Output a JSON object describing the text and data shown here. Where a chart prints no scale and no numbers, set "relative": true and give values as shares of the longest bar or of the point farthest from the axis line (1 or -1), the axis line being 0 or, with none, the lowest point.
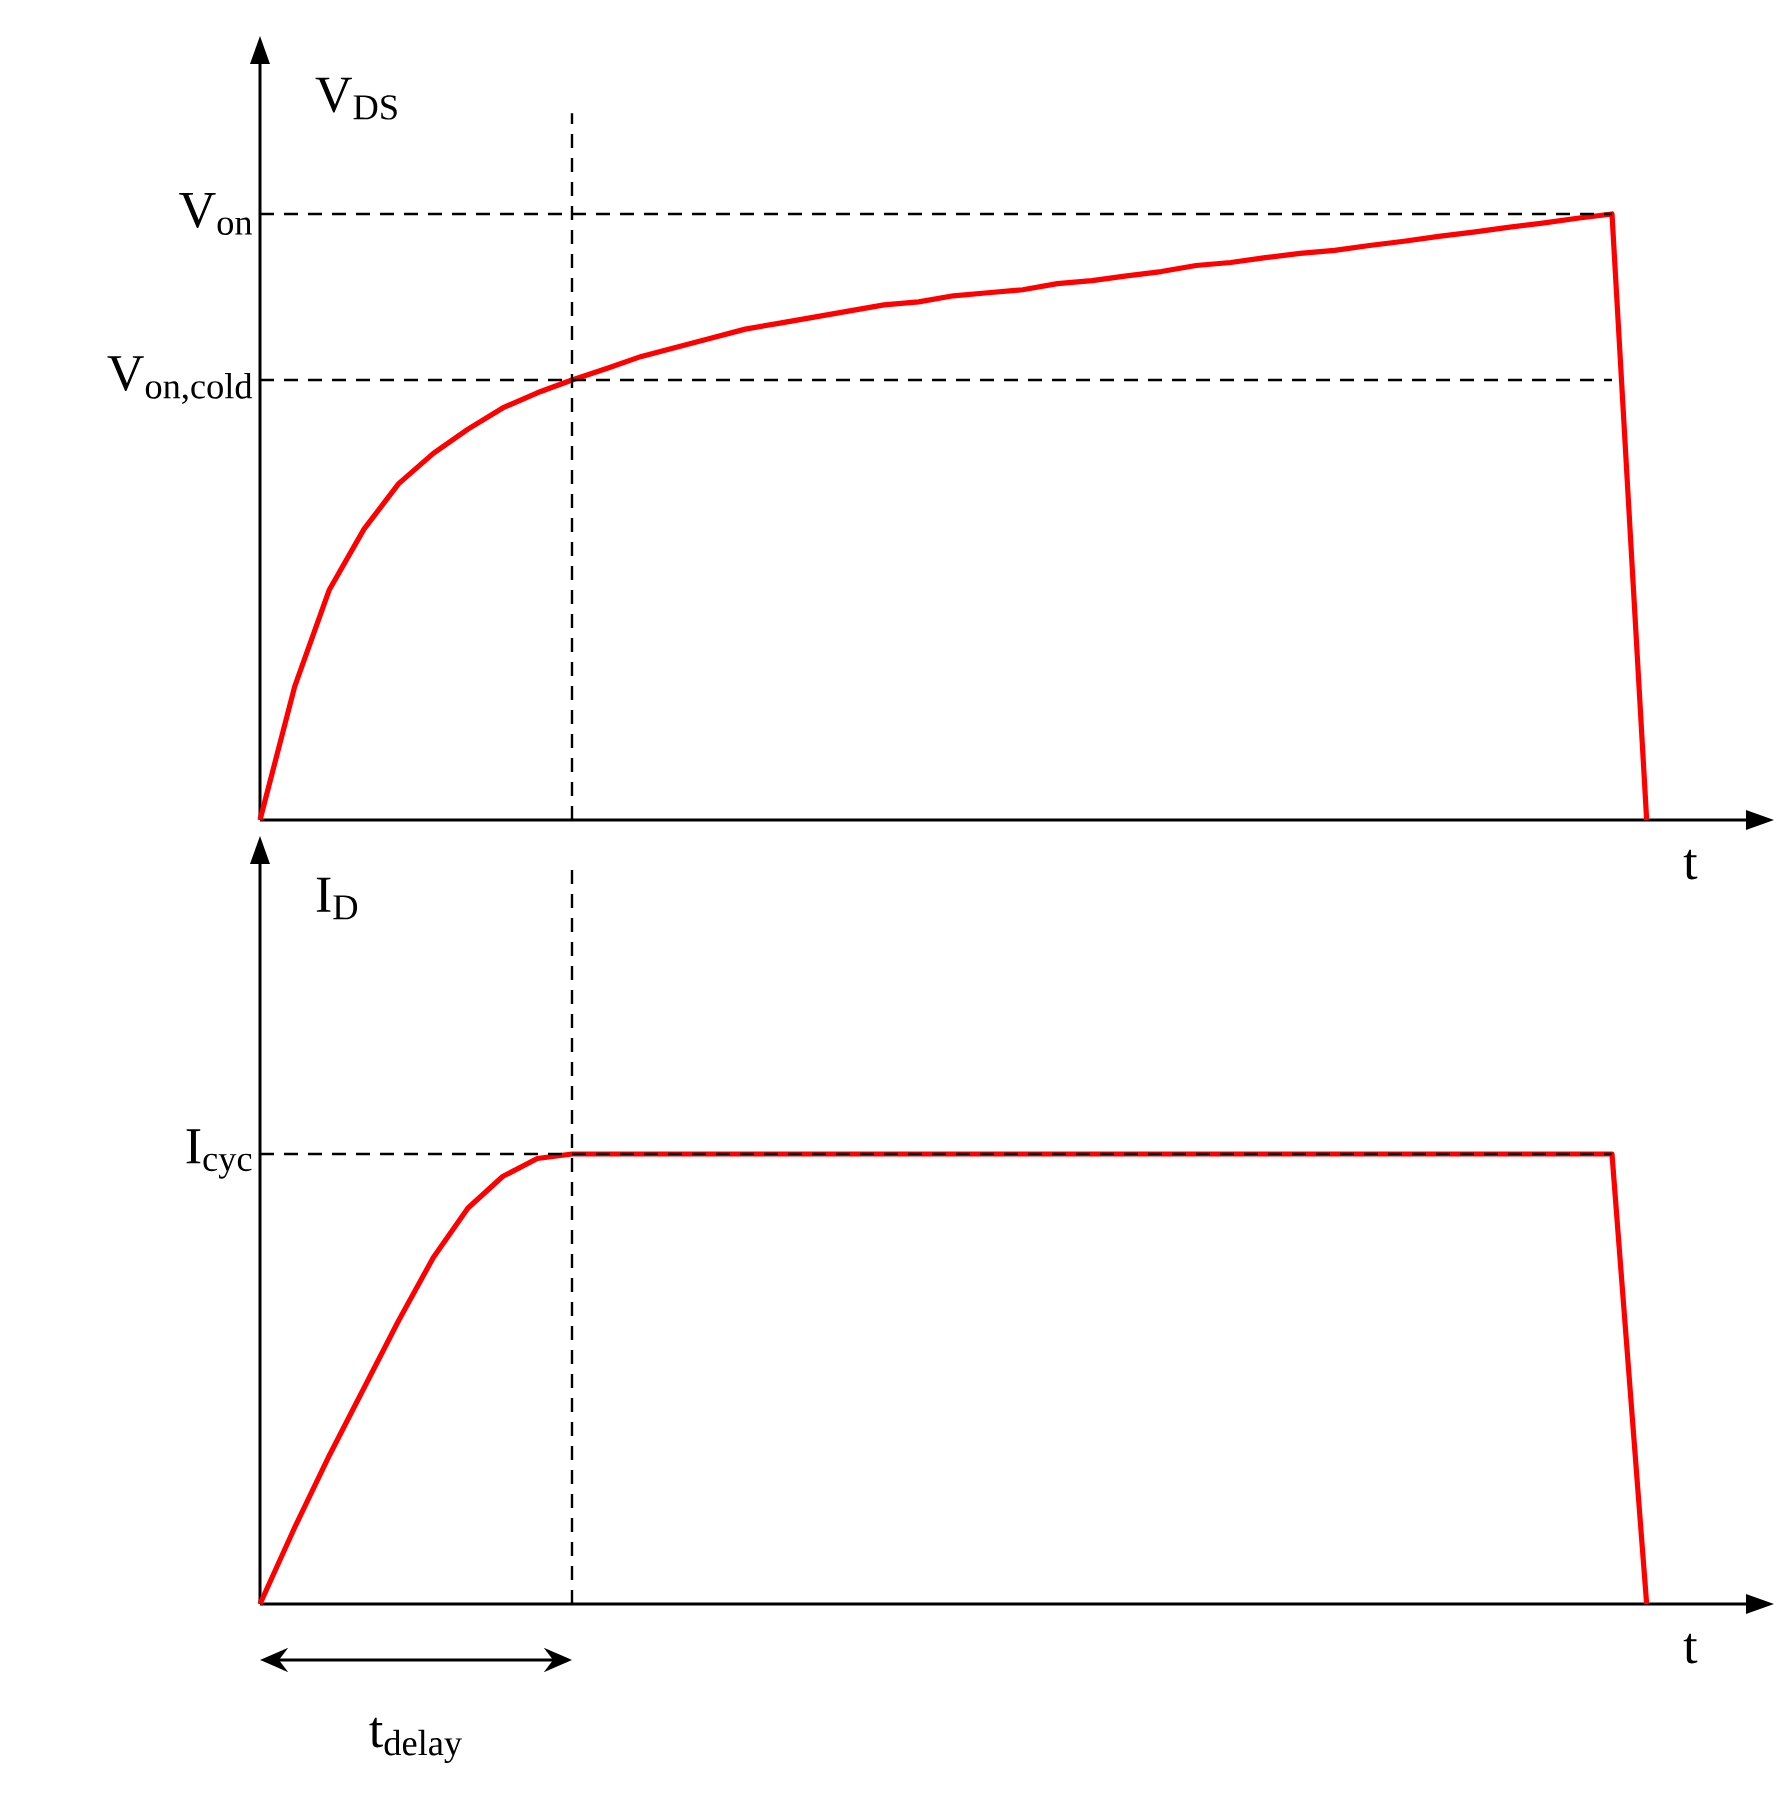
{
  "chart_data": [
    {
      "type": "line",
      "ylabel": "V$_{DS}$",
      "xlabel": "t",
      "relative": true,
      "marker": "none",
      "categories": [
        null,
        null,
        null,
        null,
        null,
        null,
        null,
        null,
        null,
        null,
        null,
        null,
        null,
        null,
        null,
        null,
        null,
        null,
        null,
        null,
        null,
        null,
        null,
        null,
        null,
        null,
        null,
        null,
        null,
        null,
        null,
        null,
        null,
        null,
        null,
        null,
        null,
        null,
        null,
        null,
        null
      ],
      "series": [
        {
          "color": "#ff0000",
          "values": [
            0,
            0.22,
            0.38,
            0.48,
            0.555,
            0.605,
            0.645,
            0.68,
            0.705,
            0.726,
            0.745,
            0.765,
            0.78,
            0.795,
            0.81,
            0.82,
            0.83,
            0.84,
            0.85,
            0.855,
            0.865,
            0.87,
            0.875,
            0.885,
            0.89,
            0.898,
            0.905,
            0.915,
            0.92,
            0.928,
            0.935,
            0.94,
            0.948,
            0.955,
            0.963,
            0.97,
            0.978,
            0.985,
            0.993,
            1,
            0
          ]
        }
      ],
      "ref_lines": [
        {
          "axis": "y",
          "value": 1,
          "label": "V$_{on}$",
          "line_style": "dashed",
          "color": "#000000"
        },
        {
          "axis": "y",
          "value": 0.726,
          "label": "V$_{on,cold}$",
          "line_style": "dashed",
          "color": "#000000"
        }
      ]
    },
    {
      "type": "line",
      "ylabel": "I$_{D}$",
      "xlabel": "t",
      "relative": true,
      "marker": "none",
      "categories": [
        null,
        null,
        null,
        null,
        null,
        null,
        null,
        null,
        null,
        null,
        null,
        null,
        null,
        null,
        null,
        null,
        null,
        null,
        null,
        null,
        null,
        null,
        null,
        null,
        null,
        null,
        null,
        null,
        null,
        null,
        null,
        null,
        null,
        null,
        null,
        null,
        null,
        null,
        null,
        null,
        null
      ],
      "series": [
        {
          "color": "#ff0000",
          "values": [
            0,
            0.17,
            0.33,
            0.48,
            0.63,
            0.77,
            0.88,
            0.95,
            0.99,
            1,
            1,
            1,
            1,
            1,
            1,
            1,
            1,
            1,
            1,
            1,
            1,
            1,
            1,
            1,
            1,
            1,
            1,
            1,
            1,
            1,
            1,
            1,
            1,
            1,
            1,
            1,
            1,
            1,
            1,
            1,
            0
          ]
        }
      ],
      "ref_lines": [
        {
          "axis": "y",
          "value": 1,
          "label": "I$_{cyc}$",
          "line_style": "dashed",
          "color": "#000000"
        }
      ],
      "annotations": [
        "t$_{delay}$"
      ]
    }
  ]
}
